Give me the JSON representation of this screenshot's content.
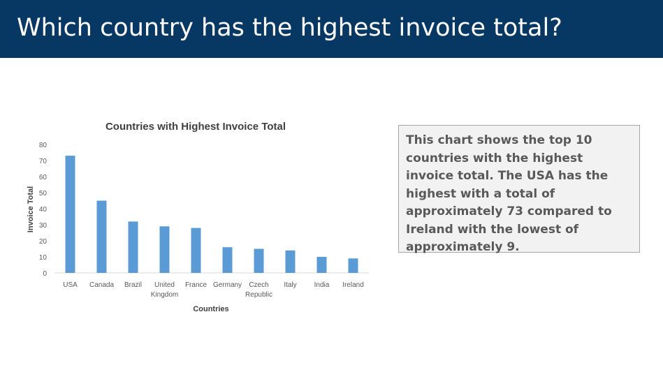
{
  "slide": {
    "title": "Which country has the highest invoice total?",
    "note": "This chart shows the top 10 countries with the highest invoice total. The USA has the highest with a total of approximately 73 compared to Ireland with the lowest of approximately 9."
  },
  "colors": {
    "title_bar": "#073763",
    "bar": "#5b9bd5",
    "note_text": "#595959",
    "note_bg": "#f2f2f2"
  },
  "chart_data": {
    "type": "bar",
    "title": "Countries with Highest Invoice Total",
    "xlabel": "Countries",
    "ylabel": "Invoice Total",
    "categories": [
      [
        "USA"
      ],
      [
        "Canada"
      ],
      [
        "Brazil"
      ],
      [
        "United",
        "Kingdom"
      ],
      [
        "France"
      ],
      [
        "Germany"
      ],
      [
        "Czech",
        "Republic"
      ],
      [
        "Italy"
      ],
      [
        "India"
      ],
      [
        "Ireland"
      ]
    ],
    "values": [
      73,
      45,
      32,
      29,
      28,
      16,
      15,
      14,
      10,
      9
    ],
    "ylim": [
      0,
      80
    ],
    "yticks": [
      0,
      10,
      20,
      30,
      40,
      50,
      60,
      70,
      80
    ],
    "grid": false,
    "legend": "none"
  }
}
